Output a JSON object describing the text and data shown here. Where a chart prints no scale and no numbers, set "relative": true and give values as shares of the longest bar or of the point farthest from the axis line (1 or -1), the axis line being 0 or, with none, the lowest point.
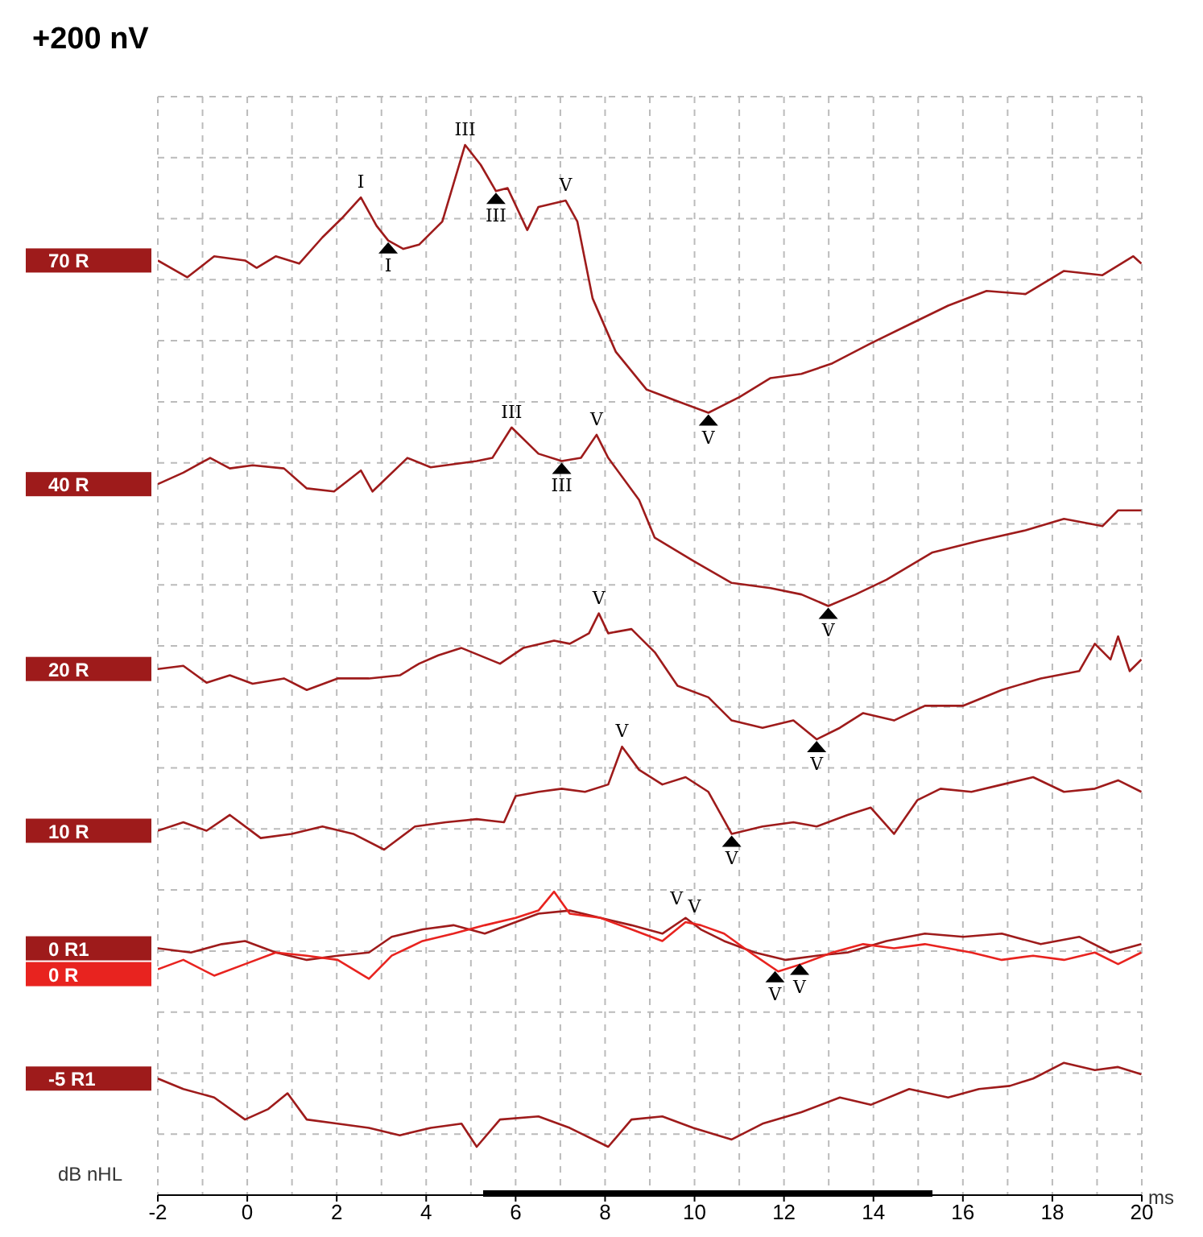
{
  "chart_data": {
    "type": "line",
    "relative": true,
    "xlabel": "ms",
    "xlim": [
      -2,
      20
    ],
    "xticks": [
      -2,
      0,
      2,
      4,
      6,
      8,
      10,
      12,
      14,
      16,
      18,
      20
    ],
    "grid": true,
    "legend": false,
    "marker": "none",
    "line_style": "solid",
    "annotations": [
      "+200 nV",
      {
        "text": "I",
        "x": 2.54,
        "y": 0.95
      },
      {
        "text": "I",
        "x": 3.15,
        "y": 0.909
      },
      {
        "text": "III",
        "x": 4.87,
        "y": 1.0
      },
      {
        "text": "III",
        "x": 5.56,
        "y": 0.956
      },
      {
        "text": "V",
        "x": 7.12,
        "y": 0.947
      },
      {
        "text": "V",
        "x": 10.31,
        "y": 0.745
      },
      {
        "text": "III",
        "x": 5.91,
        "y": 0.731
      },
      {
        "text": "III",
        "x": 7.03,
        "y": 0.699
      },
      {
        "text": "V",
        "x": 7.81,
        "y": 0.724
      },
      {
        "text": "V",
        "x": 12.99,
        "y": 0.561
      },
      {
        "text": "V",
        "x": 7.86,
        "y": 0.554
      },
      {
        "text": "V",
        "x": 12.73,
        "y": 0.434
      },
      {
        "text": "V",
        "x": 8.38,
        "y": 0.427
      },
      {
        "text": "V",
        "x": 10.83,
        "y": 0.344
      },
      {
        "text": "V",
        "x": 9.6,
        "y": 0.268
      },
      {
        "text": "V",
        "x": 11.8,
        "y": 0.215
      },
      {
        "text": "V",
        "x": 10.0,
        "y": 0.26
      },
      {
        "text": "V",
        "x": 12.35,
        "y": 0.222
      },
      "dB nHL"
    ],
    "series": [
      {
        "name": "70 R",
        "color": "#9e1b1b",
        "x": [
          -2,
          -1.34,
          -0.74,
          -0.05,
          0.21,
          0.64,
          1.16,
          1.68,
          2.11,
          2.54,
          2.89,
          3.15,
          3.49,
          3.84,
          4.36,
          4.87,
          5.22,
          5.56,
          5.82,
          6.26,
          6.51,
          7.12,
          7.38,
          7.72,
          8.24,
          8.93,
          9.62,
          10.31,
          11.01,
          11.7,
          12.39,
          13.08,
          13.94,
          14.8,
          15.67,
          16.53,
          17.4,
          18.26,
          19.12,
          19.81,
          19.99
        ],
        "values": [
          0.89,
          0.874,
          0.894,
          0.89,
          0.883,
          0.894,
          0.887,
          0.912,
          0.93,
          0.95,
          0.923,
          0.909,
          0.901,
          0.905,
          0.927,
          1.0,
          0.981,
          0.956,
          0.959,
          0.919,
          0.941,
          0.947,
          0.927,
          0.854,
          0.803,
          0.767,
          0.756,
          0.745,
          0.76,
          0.778,
          0.782,
          0.792,
          0.811,
          0.829,
          0.847,
          0.861,
          0.858,
          0.88,
          0.876,
          0.894,
          0.887
        ]
      },
      {
        "name": "40 R",
        "color": "#9e1b1b",
        "x": [
          -2,
          -1.43,
          -0.83,
          -0.39,
          0.12,
          0.82,
          1.33,
          1.94,
          2.54,
          2.8,
          3.58,
          4.1,
          5.13,
          5.48,
          5.91,
          6.51,
          7.03,
          7.46,
          7.81,
          8.07,
          8.76,
          9.11,
          9.97,
          10.83,
          11.7,
          12.39,
          12.99,
          13.6,
          14.29,
          15.32,
          16.36,
          17.4,
          18.26,
          19.12,
          19.47,
          19.99
        ],
        "values": [
          0.677,
          0.688,
          0.702,
          0.692,
          0.695,
          0.692,
          0.673,
          0.67,
          0.69,
          0.67,
          0.702,
          0.693,
          0.699,
          0.702,
          0.731,
          0.706,
          0.699,
          0.702,
          0.724,
          0.702,
          0.662,
          0.626,
          0.604,
          0.583,
          0.578,
          0.572,
          0.561,
          0.572,
          0.586,
          0.612,
          0.623,
          0.633,
          0.644,
          0.637,
          0.652,
          0.652
        ]
      },
      {
        "name": "20 R",
        "color": "#9e1b1b",
        "x": [
          -2,
          -1.43,
          -0.91,
          -0.39,
          0.12,
          0.82,
          1.33,
          2.02,
          2.72,
          3.41,
          3.84,
          4.27,
          4.79,
          5.65,
          6.17,
          6.86,
          7.21,
          7.64,
          7.86,
          8.07,
          8.59,
          9.11,
          9.62,
          10.31,
          10.83,
          11.52,
          12.21,
          12.73,
          13.25,
          13.77,
          14.46,
          15.15,
          16.01,
          16.87,
          17.74,
          18.6,
          18.95,
          19.3,
          19.47,
          19.73,
          19.99
        ],
        "values": [
          0.501,
          0.504,
          0.488,
          0.495,
          0.487,
          0.492,
          0.481,
          0.492,
          0.492,
          0.495,
          0.506,
          0.514,
          0.521,
          0.506,
          0.521,
          0.528,
          0.525,
          0.535,
          0.554,
          0.535,
          0.539,
          0.517,
          0.485,
          0.474,
          0.452,
          0.445,
          0.452,
          0.434,
          0.445,
          0.459,
          0.452,
          0.466,
          0.466,
          0.481,
          0.492,
          0.499,
          0.525,
          0.51,
          0.532,
          0.499,
          0.51
        ]
      },
      {
        "name": "10 R",
        "color": "#9e1b1b",
        "x": [
          -2,
          -1.43,
          -0.91,
          -0.39,
          0.3,
          0.99,
          1.68,
          2.37,
          3.06,
          3.75,
          4.44,
          5.13,
          5.74,
          6.0,
          6.51,
          7.03,
          7.55,
          8.07,
          8.38,
          8.76,
          9.28,
          9.8,
          10.31,
          10.83,
          11.52,
          12.21,
          12.73,
          13.42,
          13.94,
          14.46,
          14.98,
          15.5,
          16.19,
          16.88,
          17.57,
          18.26,
          18.95,
          19.47,
          19.99
        ],
        "values": [
          0.347,
          0.355,
          0.347,
          0.362,
          0.34,
          0.344,
          0.351,
          0.344,
          0.329,
          0.351,
          0.355,
          0.358,
          0.355,
          0.38,
          0.384,
          0.387,
          0.384,
          0.391,
          0.427,
          0.405,
          0.391,
          0.398,
          0.384,
          0.344,
          0.351,
          0.355,
          0.351,
          0.362,
          0.369,
          0.344,
          0.376,
          0.387,
          0.384,
          0.391,
          0.398,
          0.384,
          0.387,
          0.395,
          0.384
        ]
      },
      {
        "name": "0 R1",
        "color": "#9e1b1b",
        "x": [
          -2,
          -1.26,
          -0.57,
          -0.05,
          0.64,
          1.33,
          2.02,
          2.72,
          3.23,
          3.92,
          4.61,
          5.31,
          6.0,
          6.51,
          7.21,
          7.9,
          8.59,
          9.28,
          9.8,
          10.14,
          10.66,
          11.35,
          12.04,
          12.73,
          13.42,
          14.29,
          15.15,
          16.01,
          16.87,
          17.74,
          18.6,
          19.3,
          19.99
        ],
        "values": [
          0.235,
          0.231,
          0.239,
          0.242,
          0.231,
          0.224,
          0.228,
          0.231,
          0.246,
          0.253,
          0.257,
          0.249,
          0.26,
          0.268,
          0.271,
          0.264,
          0.257,
          0.249,
          0.264,
          0.253,
          0.242,
          0.231,
          0.224,
          0.228,
          0.231,
          0.242,
          0.249,
          0.246,
          0.249,
          0.239,
          0.246,
          0.231,
          0.239
        ]
      },
      {
        "name": "0 R",
        "color": "#e8231f",
        "x": [
          -2,
          -1.43,
          -0.74,
          -0.05,
          0.64,
          1.33,
          2.02,
          2.72,
          3.23,
          3.92,
          4.61,
          5.31,
          6.0,
          6.51,
          6.86,
          7.21,
          7.9,
          8.59,
          9.28,
          9.8,
          10.14,
          10.66,
          11.35,
          11.87,
          12.39,
          13.08,
          13.77,
          14.46,
          15.15,
          16.19,
          16.87,
          17.57,
          18.26,
          18.95,
          19.47,
          19.99
        ],
        "values": [
          0.215,
          0.224,
          0.209,
          0.22,
          0.231,
          0.228,
          0.224,
          0.206,
          0.228,
          0.242,
          0.249,
          0.257,
          0.264,
          0.271,
          0.289,
          0.268,
          0.264,
          0.253,
          0.242,
          0.26,
          0.257,
          0.249,
          0.228,
          0.213,
          0.22,
          0.231,
          0.239,
          0.235,
          0.239,
          0.231,
          0.224,
          0.228,
          0.224,
          0.231,
          0.22,
          0.231
        ]
      },
      {
        "name": "-5 R1",
        "color": "#9e1b1b",
        "x": [
          -2,
          -1.43,
          -0.74,
          -0.05,
          0.47,
          0.9,
          1.33,
          2.02,
          2.72,
          3.41,
          4.1,
          4.79,
          5.13,
          5.65,
          6.51,
          7.21,
          8.07,
          8.59,
          9.28,
          9.97,
          10.83,
          11.52,
          12.39,
          13.25,
          13.94,
          14.8,
          15.67,
          16.36,
          17.05,
          17.57,
          18.26,
          18.95,
          19.47,
          19.99
        ],
        "values": [
          0.111,
          0.101,
          0.093,
          0.072,
          0.082,
          0.097,
          0.072,
          0.068,
          0.064,
          0.057,
          0.064,
          0.068,
          0.046,
          0.072,
          0.075,
          0.064,
          0.046,
          0.072,
          0.075,
          0.064,
          0.053,
          0.068,
          0.079,
          0.093,
          0.086,
          0.101,
          0.093,
          0.101,
          0.104,
          0.111,
          0.126,
          0.119,
          0.122,
          0.115
        ]
      }
    ]
  }
}
